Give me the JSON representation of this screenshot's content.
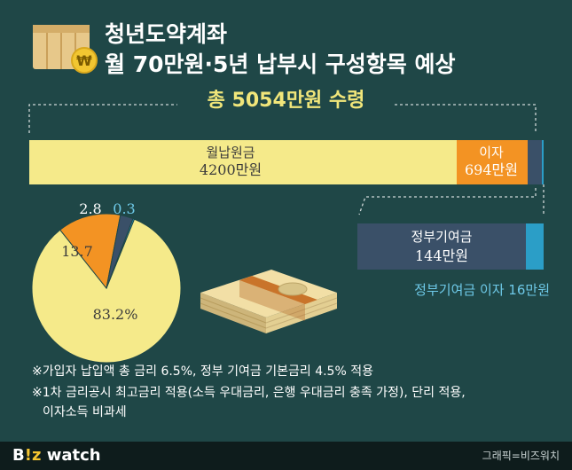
{
  "header": {
    "title_line1": "청년도약계좌",
    "title_line2": "월 70만원·5년 납부시 구성항목 예상",
    "total_label": "총 5054만원 수령"
  },
  "colors": {
    "background": "#1f4747",
    "principal": "#f5ea8a",
    "interest": "#f39323",
    "gov_contribution": "#3a5068",
    "gov_interest": "#2b9ec7",
    "accent_text": "#f1e67a",
    "light_blue_text": "#6ec9e8"
  },
  "chart_data": [
    {
      "type": "bar",
      "orientation": "horizontal-stacked",
      "unit": "만원",
      "series": [
        {
          "name": "월납원금",
          "value": 4200,
          "label": "4200만원"
        },
        {
          "name": "이자",
          "value": 694,
          "label": "694만원"
        },
        {
          "name": "정부기여금",
          "value": 144,
          "label": "144만원"
        },
        {
          "name": "정부기여금 이자",
          "value": 16,
          "label": "16만원"
        }
      ],
      "total": 5054
    },
    {
      "type": "pie",
      "unit": "%",
      "slices": [
        {
          "name": "월납원금",
          "value": 83.2,
          "label": "83.2%"
        },
        {
          "name": "이자",
          "value": 13.7,
          "label": "13.7"
        },
        {
          "name": "정부기여금",
          "value": 2.8,
          "label": "2.8"
        },
        {
          "name": "정부기여금 이자",
          "value": 0.3,
          "label": "0.3"
        }
      ]
    }
  ],
  "breakout": {
    "gov_label": "정부기여금",
    "gov_interest_label": "정부기여금 이자 16만원"
  },
  "notes": [
    "※가입자 납입액 총 금리 6.5%, 정부 기여금 기본금리 4.5% 적용",
    "※1차 금리공시 최고금리 적용(소득 우대금리, 은행 우대금리 충족 가정), 단리 적용,",
    "이자소득 비과세"
  ],
  "footer": {
    "brand_prefix": "B",
    "brand_mark": "!z",
    "brand_suffix": " watch",
    "credit": "그래픽=비즈워치"
  }
}
